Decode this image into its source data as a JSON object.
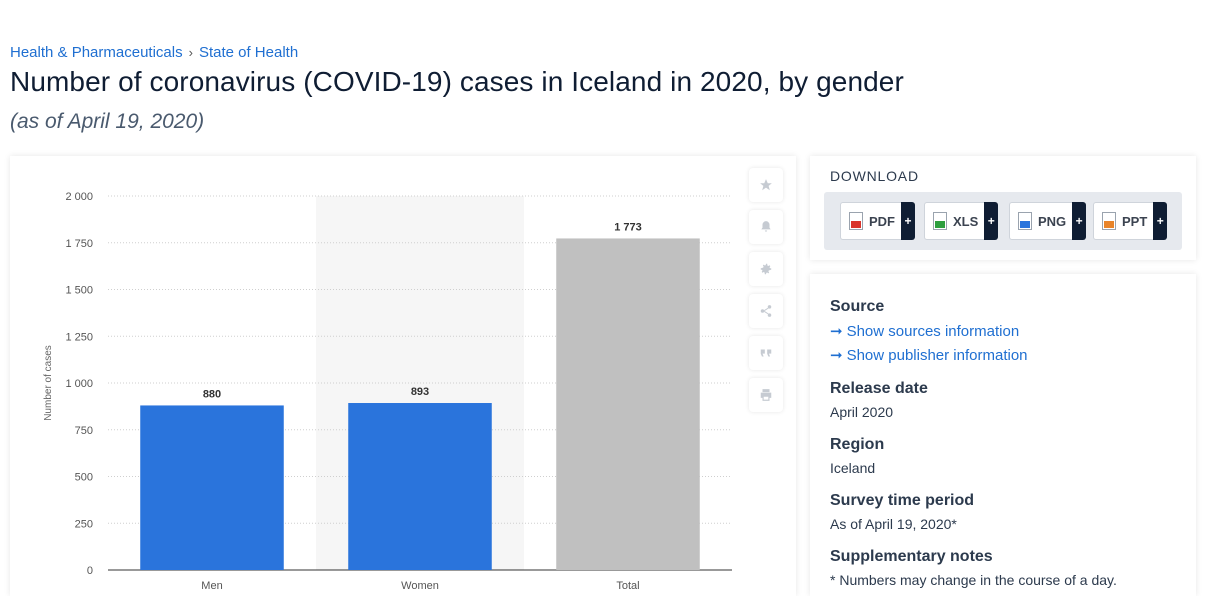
{
  "breadcrumb": {
    "items": [
      "Health & Pharmaceuticals",
      "State of Health"
    ],
    "separator": "›"
  },
  "title": "Number of coronavirus (COVID-19) cases in Iceland in 2020, by gender",
  "subtitle": "(as of April 19, 2020)",
  "toolbar": {
    "icons": [
      "star-icon",
      "bell-icon",
      "gear-icon",
      "share-icon",
      "quote-icon",
      "print-icon"
    ]
  },
  "chart_data": {
    "type": "bar",
    "categories": [
      "Men",
      "Women",
      "Total"
    ],
    "values": [
      880,
      893,
      1773
    ],
    "value_labels": [
      "880",
      "893",
      "1 773"
    ],
    "colors": [
      "#2a74dc",
      "#2a74dc",
      "#c0c0c0"
    ],
    "highlight_category": "Women",
    "title": "",
    "xlabel": "",
    "ylabel": "Number of cases",
    "ylim": [
      0,
      2000
    ],
    "yticks": [
      0,
      250,
      500,
      750,
      1000,
      1250,
      1500,
      1750,
      2000
    ],
    "ytick_labels": [
      "0",
      "250",
      "500",
      "750",
      "1 000",
      "1 250",
      "1 500",
      "1 750",
      "2 000"
    ]
  },
  "download": {
    "title": "DOWNLOAD",
    "buttons": [
      {
        "label": "PDF",
        "plus": "+",
        "color": "#d9342b"
      },
      {
        "label": "XLS",
        "plus": "+",
        "color": "#2e9e3e"
      },
      {
        "label": "PNG",
        "plus": "+",
        "color": "#2a74dc"
      },
      {
        "label": "PPT",
        "plus": "+",
        "color": "#e8842a"
      }
    ]
  },
  "info": {
    "source_label": "Source",
    "source_link": "Show sources information",
    "publisher_link": "Show publisher information",
    "release_label": "Release date",
    "release_value": "April 2020",
    "region_label": "Region",
    "region_value": "Iceland",
    "survey_label": "Survey time period",
    "survey_value": "As of April 19, 2020*",
    "notes_label": "Supplementary notes",
    "notes_value": "* Numbers may change in the course of a day."
  }
}
